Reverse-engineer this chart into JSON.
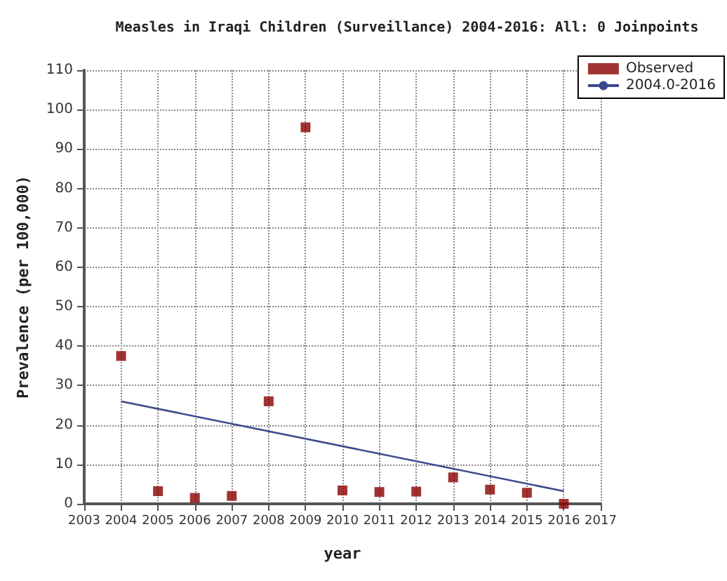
{
  "chart_data": {
    "type": "scatter",
    "title": "Measles in Iraqi Children (Surveillance) 2004-2016: All: 0 Joinpoints",
    "xlabel": "year",
    "ylabel": "Prevalence (per 100,000)",
    "x": [
      2004,
      2005,
      2006,
      2007,
      2008,
      2009,
      2010,
      2011,
      2012,
      2013,
      2014,
      2015,
      2016
    ],
    "series": [
      {
        "name": "Observed",
        "color": "#8b0000",
        "marker": "square",
        "values": [
          37.5,
          3.2,
          1.5,
          2,
          26,
          95.5,
          3.4,
          3,
          3.1,
          6.7,
          3.6,
          2.8,
          0
        ]
      },
      {
        "name": "2004.0-2016",
        "type": "line",
        "color": "#3a4a8c",
        "marker": "none",
        "x": [
          2004,
          2016
        ],
        "values": [
          26,
          3.2
        ]
      }
    ],
    "xlim": [
      2003,
      2017
    ],
    "xticks": [
      2003,
      2004,
      2005,
      2006,
      2007,
      2008,
      2009,
      2010,
      2011,
      2012,
      2013,
      2014,
      2015,
      2016,
      2017
    ],
    "ylim": [
      0,
      110
    ],
    "yticks": [
      0,
      10,
      20,
      30,
      40,
      50,
      60,
      70,
      80,
      90,
      100,
      110
    ],
    "grid": true,
    "legend": "top right"
  }
}
